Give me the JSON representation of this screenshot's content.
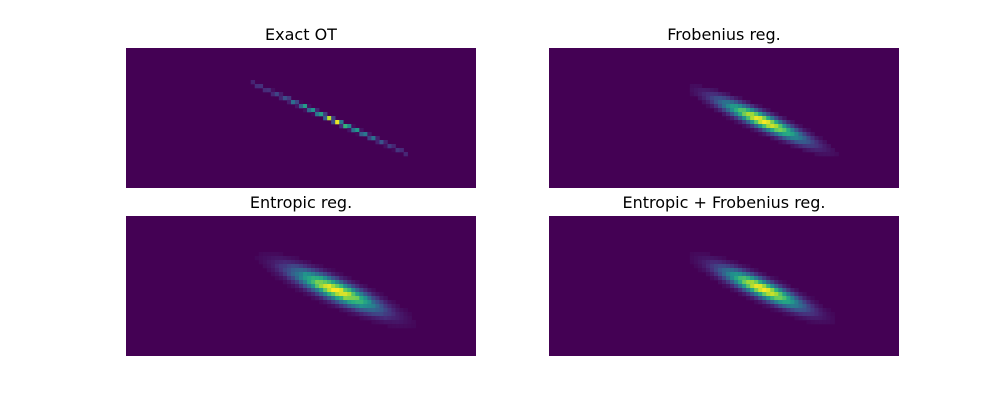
{
  "chart_data": [
    {
      "type": "heatmap",
      "title": "Exact OT",
      "colormap": "viridis",
      "rows": 35,
      "cols": 87,
      "description_of_data": "mass concentrated on a thin diagonal line",
      "model": {
        "cx": 0.58,
        "cy": 0.5,
        "angle_deg": 24.5,
        "major": 0.3,
        "minor": 0.008,
        "sparkle": true,
        "length_scale": 0.22
      }
    },
    {
      "type": "heatmap",
      "title": "Frobenius reg.",
      "colormap": "viridis",
      "rows": 35,
      "cols": 87,
      "model": {
        "cx": 0.61,
        "cy": 0.52,
        "angle_deg": 24.5,
        "major": 0.16,
        "minor": 0.035,
        "sparkle": false,
        "cut": 0.03
      }
    },
    {
      "type": "heatmap",
      "title": "Entropic reg.",
      "colormap": "viridis",
      "rows": 35,
      "cols": 87,
      "model": {
        "cx": 0.6,
        "cy": 0.53,
        "angle_deg": 23.5,
        "major": 0.16,
        "minor": 0.045,
        "sparkle": false,
        "noise": 0.12
      }
    },
    {
      "type": "heatmap",
      "title": "Entropic + Frobenius reg.",
      "colormap": "viridis",
      "rows": 35,
      "cols": 87,
      "model": {
        "cx": 0.61,
        "cy": 0.52,
        "angle_deg": 24.5,
        "major": 0.15,
        "minor": 0.04,
        "sparkle": false
      }
    }
  ]
}
